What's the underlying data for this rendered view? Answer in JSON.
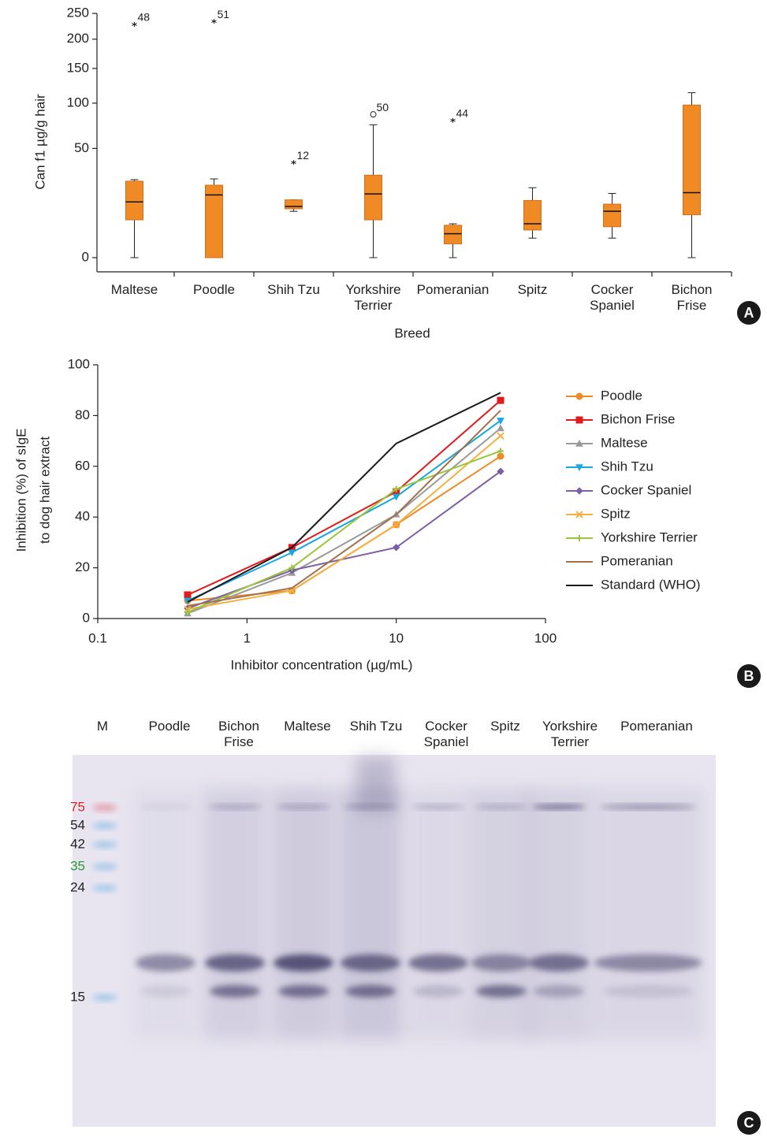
{
  "chart_data": [
    {
      "type": "box",
      "panel_label": "A",
      "ylabel": "Can f1 µg/g hair",
      "xlabel": "Breed",
      "yscale": "sqrt",
      "ylim": [
        0,
        250
      ],
      "yticks": [
        0,
        50,
        100,
        150,
        200,
        250
      ],
      "color": "#f08a24",
      "categories": [
        "Maltese",
        "Poodle",
        "Shih Tzu",
        "Yorkshire Terrier",
        "Pomeranian",
        "Spitz",
        "Cocker Spaniel",
        "Bichon Frise"
      ],
      "boxes": [
        {
          "min": 0,
          "q1": 6,
          "median": 13,
          "q3": 24.5,
          "max": 25.5
        },
        {
          "min": 0,
          "q1": 0,
          "median": 16.5,
          "q3": 22,
          "max": 26
        },
        {
          "min": 9,
          "q1": 10,
          "median": 11,
          "q3": 14,
          "max": 14
        },
        {
          "min": 0,
          "q1": 6,
          "median": 17,
          "q3": 28.5,
          "max": 74
        },
        {
          "min": 0,
          "q1": 0.8,
          "median": 2.4,
          "q3": 4.4,
          "max": 4.8
        },
        {
          "min": 1.6,
          "q1": 3.2,
          "median": 4.8,
          "q3": 13.7,
          "max": 20.5
        },
        {
          "min": 1.6,
          "q1": 4,
          "median": 9,
          "q3": 12,
          "max": 17.3
        },
        {
          "min": 0,
          "q1": 7.7,
          "median": 17.7,
          "q3": 97.6,
          "max": 114
        }
      ],
      "outliers": [
        [
          {
            "value": 228,
            "case": "48",
            "shape": "star"
          }
        ],
        [
          {
            "value": 234,
            "case": "51",
            "shape": "star"
          }
        ],
        [
          {
            "value": 38,
            "case": "12",
            "shape": "star"
          }
        ],
        [
          {
            "value": 86,
            "case": "50",
            "shape": "circle"
          }
        ],
        [
          {
            "value": 79,
            "case": "44",
            "shape": "star"
          }
        ],
        [],
        [],
        []
      ]
    },
    {
      "type": "line",
      "panel_label": "B",
      "ylabel": [
        "Inhibition (%) of sIgE",
        "to dog hair extract"
      ],
      "xlabel": "Inhibitor concentration (µg/mL)",
      "xscale": "log",
      "xlim": [
        0.1,
        100
      ],
      "xticks": [
        0.1,
        1,
        10,
        100
      ],
      "ylim": [
        0,
        100
      ],
      "yticks": [
        0,
        20,
        40,
        60,
        80,
        100
      ],
      "x": [
        0.4,
        2,
        10,
        50
      ],
      "legend": "right",
      "series": [
        {
          "name": "Poodle",
          "color": "#f08a24",
          "marker": "circle",
          "values": [
            7,
            11,
            37,
            64
          ]
        },
        {
          "name": "Bichon Frise",
          "color": "#e31a1c",
          "marker": "square",
          "values": [
            9.3,
            28,
            50,
            86
          ]
        },
        {
          "name": "Maltese",
          "color": "#9a9a9a",
          "marker": "triangle",
          "values": [
            2,
            18,
            41,
            75
          ]
        },
        {
          "name": "Shih Tzu",
          "color": "#1aa7e0",
          "marker": "triangle-down",
          "values": [
            7,
            26,
            48,
            78
          ]
        },
        {
          "name": "Cocker Spaniel",
          "color": "#7b5ea7",
          "marker": "diamond",
          "values": [
            4,
            19,
            28,
            58
          ]
        },
        {
          "name": "Spitz",
          "color": "#f5b041",
          "marker": "x",
          "values": [
            3.7,
            11,
            37,
            72
          ]
        },
        {
          "name": "Yorkshire Terrier",
          "color": "#9bc53d",
          "marker": "plus",
          "values": [
            2.5,
            20,
            51,
            66
          ]
        },
        {
          "name": "Pomeranian",
          "color": "#a0714f",
          "marker": "none",
          "values": [
            5,
            12,
            41,
            82
          ]
        },
        {
          "name": "Standard (WHO)",
          "color": "#1a1a1a",
          "marker": "none",
          "values": [
            6.5,
            28,
            69,
            89
          ]
        }
      ]
    },
    {
      "type": "blot",
      "panel_label": "C",
      "lanes": [
        "M",
        "Poodle",
        "Bichon Frise",
        "Maltese",
        "Shih Tzu",
        "Cocker Spaniel",
        "Spitz",
        "Yorkshire Terrier",
        "Pomeranian"
      ],
      "size_markers": [
        {
          "value": 75,
          "color": "#d7262b"
        },
        {
          "value": 54,
          "color": "#222222"
        },
        {
          "value": 42,
          "color": "#222222"
        },
        {
          "value": 35,
          "color": "#2a9a3a"
        },
        {
          "value": 24,
          "color": "#222222"
        },
        {
          "value": 15,
          "color": "#222222"
        }
      ]
    }
  ]
}
